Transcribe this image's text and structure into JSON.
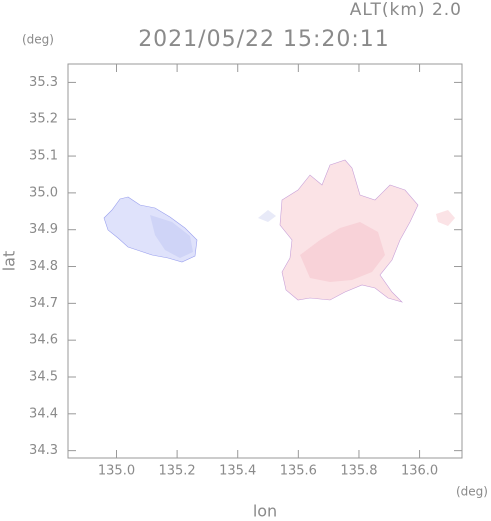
{
  "chart_data": {
    "type": "map",
    "title": "2021/05/22 15:20:11",
    "subtitle": "ALT(km) 2.0",
    "y_unit": "(deg)",
    "x_unit": "(deg)",
    "x_label": "lon",
    "y_label": "lat",
    "xlim": [
      134.84,
      136.14
    ],
    "xticks": [
      {
        "value": 135,
        "label": "135.0"
      },
      135.2,
      135.4,
      135.6,
      135.8,
      {
        "value": 136,
        "label": "136.0"
      }
    ],
    "ylim": [
      34.28,
      35.35
    ],
    "yticks": [
      34.3,
      34.4,
      34.5,
      34.6,
      34.7,
      34.8,
      34.9,
      {
        "value": 35,
        "label": "35.0"
      },
      35.1,
      35.2,
      35.3
    ]
  }
}
